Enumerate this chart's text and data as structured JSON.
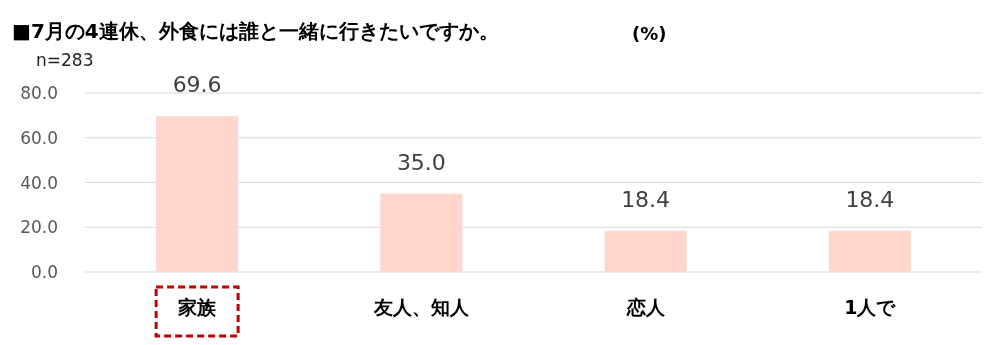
{
  "chart_data": {
    "type": "bar",
    "title": "■7月の4連休、外食には誰と一緒に行きたいですか。",
    "ylabel": "(%)",
    "annotations": [
      "n=283"
    ],
    "categories": [
      "家族",
      "友人、知人",
      "恋人",
      "1人で"
    ],
    "values": [
      69.6,
      35.0,
      18.4,
      18.4
    ],
    "value_labels": [
      "69.6",
      "35.0",
      "18.4",
      "18.4"
    ],
    "color": "#ffd5cc",
    "ylim": [
      0,
      80
    ],
    "yticks": [
      {
        "value": 0,
        "label": "0.0"
      },
      {
        "value": 20,
        "label": "20.0"
      },
      {
        "value": 40,
        "label": "40.0"
      },
      {
        "value": 60,
        "label": "60.0"
      },
      {
        "value": 80,
        "label": "80.0"
      }
    ],
    "grid": "y"
  }
}
